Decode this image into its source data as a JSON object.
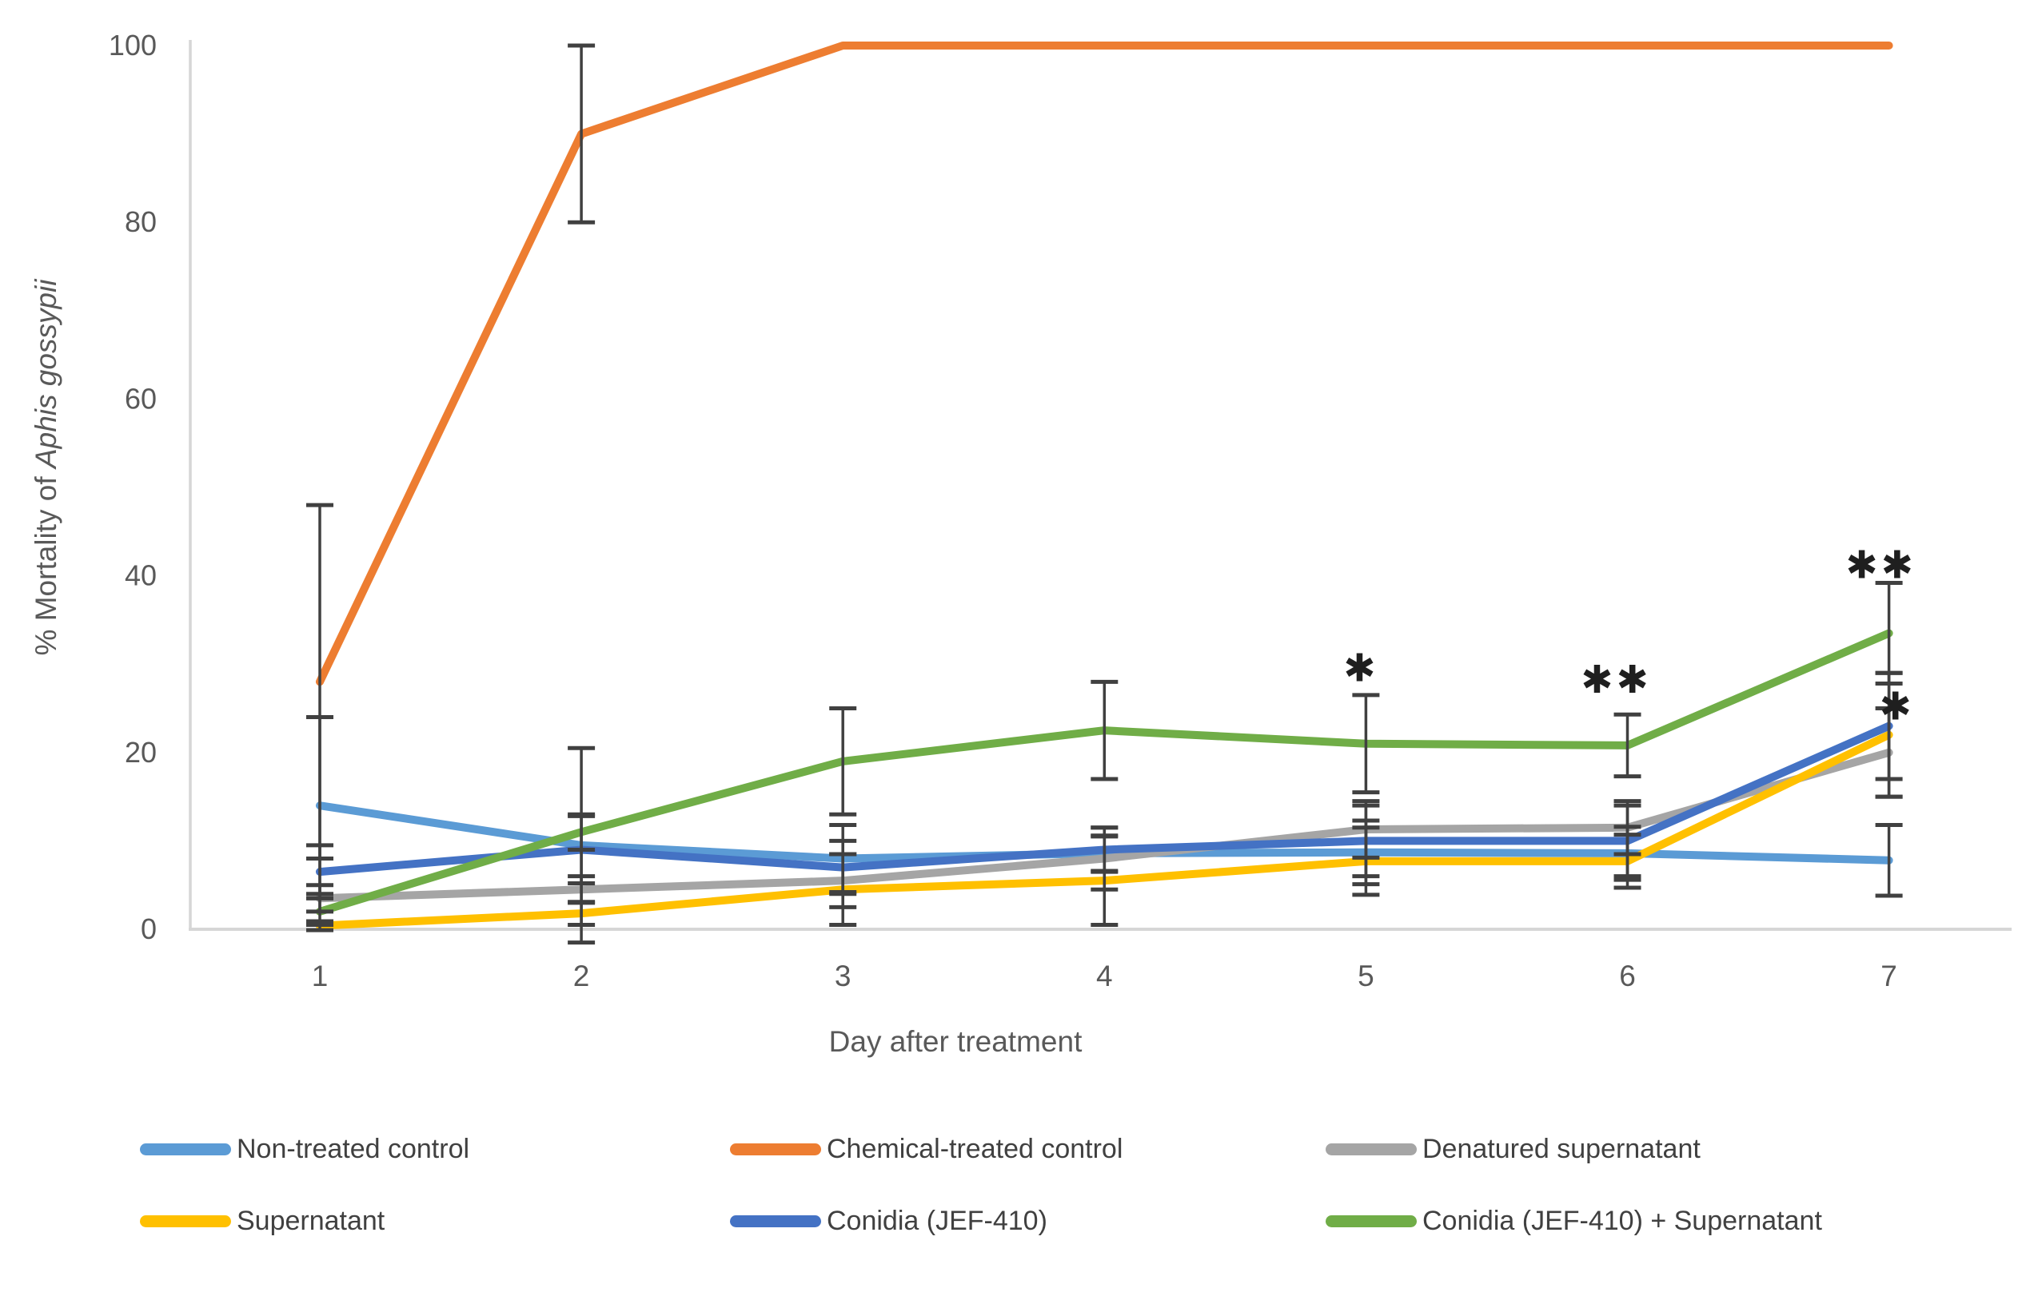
{
  "chart_data": {
    "type": "line",
    "title": "",
    "xlabel": "Day after treatment",
    "ylabel_prefix": "% Mortality of ",
    "ylabel_italic": "Aphis gossypii",
    "x_categories": [
      "1",
      "2",
      "3",
      "4",
      "5",
      "6",
      "7"
    ],
    "x": [
      1,
      2,
      3,
      4,
      5,
      6,
      7
    ],
    "ylim": [
      0,
      100
    ],
    "yticks": [
      0,
      20,
      40,
      60,
      80,
      100
    ],
    "grid": false,
    "legend_position": "bottom",
    "error_bars": true,
    "series": [
      {
        "name": "Non-treated control",
        "color": "#5B9BD5",
        "values": [
          14,
          9.5,
          8,
          8.6,
          8.7,
          8.6,
          7.8
        ],
        "err": [
          10,
          11,
          3.8,
          2,
          3.6,
          3,
          4
        ]
      },
      {
        "name": "Chemical-treated control",
        "color": "#ED7D31",
        "values": [
          28,
          90,
          100,
          100,
          100,
          100,
          100
        ],
        "err": [
          20,
          10,
          0,
          0,
          0,
          0,
          0
        ]
      },
      {
        "name": "Denatured supernatant",
        "color": "#A5A5A5",
        "values": [
          3.5,
          4.5,
          5.5,
          8,
          11.3,
          11.5,
          20
        ],
        "err": [
          1.5,
          1.5,
          3,
          3.5,
          3.2,
          3,
          5
        ]
      },
      {
        "name": "Supernatant",
        "color": "#FFC000",
        "values": [
          0.4,
          1.8,
          4.5,
          5.5,
          7.7,
          7.7,
          22
        ],
        "err": [
          0.5,
          1.3,
          4,
          5,
          3.8,
          3,
          7
        ]
      },
      {
        "name": "Conidia (JEF-410)",
        "color": "#4472C4",
        "values": [
          6.5,
          9,
          7,
          9,
          10,
          10,
          23
        ],
        "err": [
          3,
          3.8,
          3,
          2.5,
          4,
          4,
          6
        ]
      },
      {
        "name": "Conidia (JEF-410) + Supernatant",
        "color": "#70AD47",
        "values": [
          2,
          11,
          19,
          22.5,
          21,
          20.8,
          33.5
        ],
        "err": [
          1.5,
          2,
          6,
          5.5,
          5.5,
          3.5,
          5.7
        ]
      }
    ],
    "sig_markers": [
      {
        "day": 5,
        "value": 29.5,
        "symbol": "✱",
        "dx": -6
      },
      {
        "day": 6,
        "value": 28.2,
        "symbol": "✱✱",
        "dx": -14
      },
      {
        "day": 7,
        "value": 41.2,
        "symbol": "✱✱",
        "dx": -10
      },
      {
        "day": 7,
        "value": 25.2,
        "symbol": "✱",
        "dx": 10
      }
    ],
    "axis_color": "#D6D6D6",
    "tick_label_color": "#595959",
    "error_bar_color": "#404040",
    "marker_color": "#1f1f1f"
  }
}
